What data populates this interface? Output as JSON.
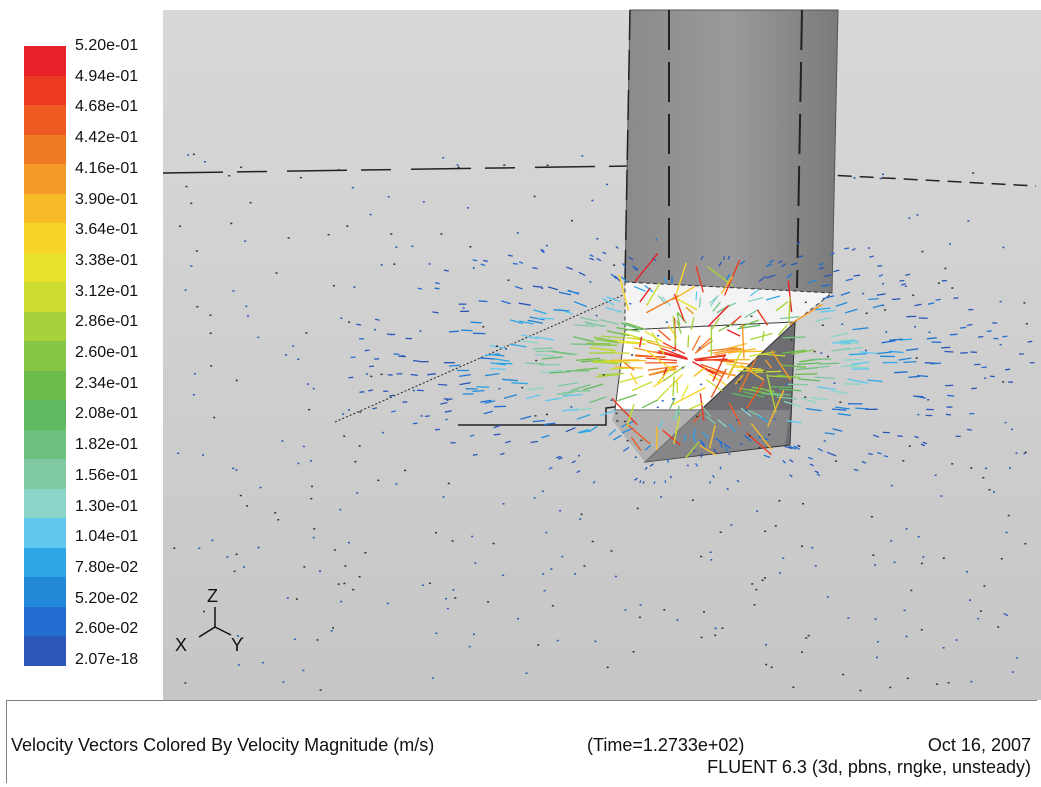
{
  "colormap": {
    "labels": [
      "5.20e-01",
      "4.94e-01",
      "4.68e-01",
      "4.42e-01",
      "4.16e-01",
      "3.90e-01",
      "3.64e-01",
      "3.38e-01",
      "3.12e-01",
      "2.86e-01",
      "2.60e-01",
      "2.34e-01",
      "2.08e-01",
      "1.82e-01",
      "1.56e-01",
      "1.30e-01",
      "1.04e-01",
      "7.80e-02",
      "5.20e-02",
      "2.60e-02",
      "2.07e-18"
    ],
    "colors": [
      "#e8202a",
      "#ec3a22",
      "#ef5a22",
      "#f17a24",
      "#f49a28",
      "#f7bb28",
      "#f8d428",
      "#e8e12a",
      "#cddc32",
      "#a8d23c",
      "#86c646",
      "#6cbd4c",
      "#5fba60",
      "#6ec07e",
      "#80c8a2",
      "#8ad4c8",
      "#60c8ee",
      "#2ea6e6",
      "#2288d8",
      "#226ed0",
      "#2b57b8"
    ]
  },
  "axes_triad": {
    "z": "Z",
    "x": "X",
    "y": "Y"
  },
  "caption": {
    "title": "Velocity Vectors Colored By Velocity Magnitude (m/s)",
    "time": "(Time=1.2733e+02)",
    "date": "Oct 16, 2007",
    "solver": "FLUENT 6.3 (3d, pbns, rngke, unsteady)"
  }
}
